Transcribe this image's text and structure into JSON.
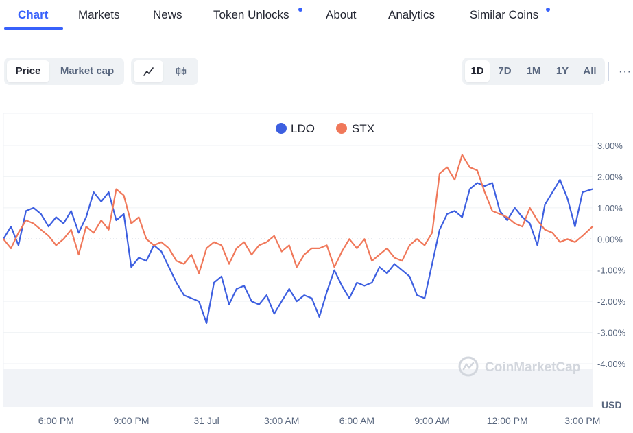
{
  "tabs": [
    {
      "label": "Chart",
      "active": true
    },
    {
      "label": "Markets"
    },
    {
      "label": "News"
    },
    {
      "label": "Token Unlocks",
      "has_dot": true
    },
    {
      "label": "About"
    },
    {
      "label": "Analytics"
    },
    {
      "label": "Similar Coins",
      "has_dot": true
    }
  ],
  "toolbar": {
    "price_label": "Price",
    "market_cap_label": "Market cap",
    "chart_types": [
      "line-chart-icon",
      "candlestick-icon"
    ],
    "ranges": [
      "1D",
      "7D",
      "1M",
      "1Y",
      "All"
    ],
    "active_range": "1D",
    "more_label": "···"
  },
  "watermark": "CoinMarketCap",
  "currency": "USD",
  "colors": {
    "accent": "#3861fb",
    "ldo": "#3d5fe0",
    "stx": "#f0785a",
    "grid": "#eff2f5"
  },
  "chart_data": {
    "type": "line",
    "y_unit": "%",
    "ylim": [
      -4,
      3
    ],
    "y_ticks": [
      "3.00%",
      "2.00%",
      "1.00%",
      "0.00%",
      "-1.00%",
      "-2.00%",
      "-3.00%",
      "-4.00%"
    ],
    "y_tick_values": [
      3,
      2,
      1,
      0,
      -1,
      -2,
      -3,
      -4
    ],
    "x_ticks": [
      "6:00 PM",
      "9:00 PM",
      "31 Jul",
      "3:00 AM",
      "6:00 AM",
      "9:00 AM",
      "12:00 PM",
      "3:00 PM"
    ],
    "x_tick_hours": [
      18,
      21,
      24,
      27,
      30,
      33,
      36,
      39
    ],
    "xlim_hours": [
      15.9,
      39.4
    ],
    "legend": [
      "LDO",
      "STX"
    ],
    "legend_position": "top-center",
    "grid": true,
    "series": [
      {
        "name": "LDO",
        "x_hours": [
          15.9,
          16.2,
          16.5,
          16.8,
          17.1,
          17.4,
          17.7,
          18.0,
          18.3,
          18.6,
          18.9,
          19.2,
          19.5,
          19.8,
          20.1,
          20.4,
          20.7,
          21.0,
          21.3,
          21.6,
          21.9,
          22.2,
          22.5,
          22.8,
          23.1,
          23.4,
          23.7,
          24.0,
          24.3,
          24.6,
          24.9,
          25.2,
          25.5,
          25.8,
          26.1,
          26.4,
          26.7,
          27.0,
          27.3,
          27.6,
          27.9,
          28.2,
          28.5,
          28.8,
          29.1,
          29.4,
          29.7,
          30.0,
          30.3,
          30.6,
          30.9,
          31.2,
          31.5,
          31.8,
          32.1,
          32.4,
          32.7,
          33.0,
          33.3,
          33.6,
          33.9,
          34.2,
          34.5,
          34.8,
          35.1,
          35.4,
          35.7,
          36.0,
          36.3,
          36.6,
          36.9,
          37.2,
          37.5,
          37.8,
          38.1,
          38.4,
          38.7,
          39.0,
          39.4
        ],
        "values": [
          0.0,
          0.4,
          -0.2,
          0.9,
          1.0,
          0.8,
          0.4,
          0.7,
          0.5,
          0.9,
          0.2,
          0.7,
          1.5,
          1.2,
          1.5,
          0.6,
          0.8,
          -0.9,
          -0.6,
          -0.7,
          -0.2,
          -0.4,
          -0.9,
          -1.4,
          -1.8,
          -1.9,
          -2.0,
          -2.7,
          -1.4,
          -1.2,
          -2.1,
          -1.6,
          -1.5,
          -2.0,
          -2.1,
          -1.8,
          -2.4,
          -2.0,
          -1.6,
          -2.0,
          -1.8,
          -1.9,
          -2.5,
          -1.7,
          -1.0,
          -1.5,
          -1.9,
          -1.4,
          -1.5,
          -1.4,
          -0.9,
          -1.1,
          -0.8,
          -1.0,
          -1.2,
          -1.8,
          -1.9,
          -0.8,
          0.3,
          0.8,
          0.9,
          0.7,
          1.6,
          1.8,
          1.7,
          1.8,
          0.9,
          0.6,
          1.0,
          0.7,
          0.5,
          -0.2,
          1.1,
          1.5,
          1.9,
          1.3,
          0.4,
          1.5,
          1.6
        ]
      },
      {
        "name": "STX",
        "x_hours": [
          15.9,
          16.2,
          16.5,
          16.8,
          17.1,
          17.4,
          17.7,
          18.0,
          18.3,
          18.6,
          18.9,
          19.2,
          19.5,
          19.8,
          20.1,
          20.4,
          20.7,
          21.0,
          21.3,
          21.6,
          21.9,
          22.2,
          22.5,
          22.8,
          23.1,
          23.4,
          23.7,
          24.0,
          24.3,
          24.6,
          24.9,
          25.2,
          25.5,
          25.8,
          26.1,
          26.4,
          26.7,
          27.0,
          27.3,
          27.6,
          27.9,
          28.2,
          28.5,
          28.8,
          29.1,
          29.4,
          29.7,
          30.0,
          30.3,
          30.6,
          30.9,
          31.2,
          31.5,
          31.8,
          32.1,
          32.4,
          32.7,
          33.0,
          33.3,
          33.6,
          33.9,
          34.2,
          34.5,
          34.8,
          35.1,
          35.4,
          35.7,
          36.0,
          36.3,
          36.6,
          36.9,
          37.2,
          37.5,
          37.8,
          38.1,
          38.4,
          38.7,
          39.0,
          39.4
        ],
        "values": [
          0.0,
          -0.3,
          0.2,
          0.6,
          0.5,
          0.3,
          0.1,
          -0.2,
          0.0,
          0.3,
          -0.5,
          0.4,
          0.2,
          0.6,
          0.3,
          1.6,
          1.4,
          0.5,
          0.7,
          0.0,
          -0.2,
          -0.1,
          -0.3,
          -0.7,
          -0.8,
          -0.5,
          -1.1,
          -0.3,
          -0.1,
          -0.2,
          -0.8,
          -0.3,
          -0.1,
          -0.5,
          -0.2,
          -0.1,
          0.1,
          -0.4,
          -0.2,
          -0.9,
          -0.5,
          -0.3,
          -0.3,
          -0.2,
          -0.9,
          -0.4,
          0.0,
          -0.3,
          0.0,
          -0.7,
          -0.5,
          -0.3,
          -0.6,
          -0.7,
          -0.2,
          0.0,
          -0.2,
          0.2,
          2.1,
          2.3,
          1.9,
          2.7,
          2.3,
          2.2,
          1.5,
          0.9,
          0.8,
          0.7,
          0.5,
          0.4,
          1.0,
          0.6,
          0.3,
          0.2,
          -0.1,
          0.0,
          -0.1,
          0.1,
          0.4
        ]
      }
    ]
  }
}
